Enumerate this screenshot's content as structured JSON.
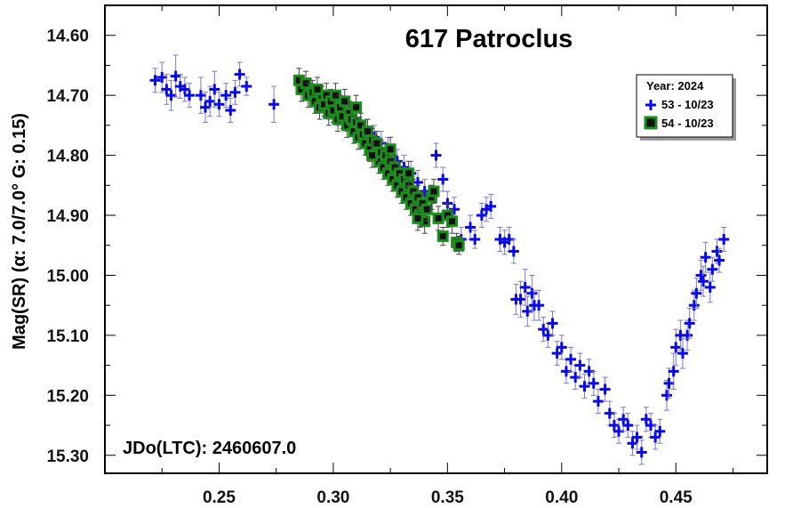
{
  "chart_data": {
    "type": "scatter",
    "title": "617 Patroclus",
    "ylabel": "Mag(SR)   (α: 7.0/7.0°  G: 0.15)",
    "xlabel": "",
    "annotation": "JDo(LTC): 2460607.0",
    "xlim": [
      0.2,
      0.49
    ],
    "ylim": [
      14.55,
      15.33
    ],
    "y_inverted": true,
    "grid": false,
    "x_ticks": [
      "0.25",
      "0.30",
      "0.35",
      "0.40",
      "0.45"
    ],
    "x_tick_values": [
      0.25,
      0.3,
      0.35,
      0.4,
      0.45
    ],
    "y_ticks": [
      "14.60",
      "14.70",
      "14.80",
      "14.90",
      "15.00",
      "15.10",
      "15.20",
      "15.30"
    ],
    "y_tick_values": [
      14.6,
      14.7,
      14.8,
      14.9,
      15.0,
      15.1,
      15.2,
      15.3
    ],
    "legend": {
      "title": "Year: 2024",
      "placement": "top-right",
      "entries": [
        "53 - 10/23",
        "54 - 10/23"
      ]
    },
    "series": [
      {
        "name": "53 - 10/23",
        "marker": "plus",
        "color": "#0a0ae6",
        "errorbar_color": "#7878d8",
        "points": [
          [
            0.222,
            14.675,
            0.02
          ],
          [
            0.225,
            14.67,
            0.025
          ],
          [
            0.227,
            14.69,
            0.025
          ],
          [
            0.229,
            14.7,
            0.025
          ],
          [
            0.231,
            14.668,
            0.035
          ],
          [
            0.233,
            14.685,
            0.02
          ],
          [
            0.235,
            14.69,
            0.02
          ],
          [
            0.237,
            14.7,
            0.02
          ],
          [
            0.242,
            14.7,
            0.03
          ],
          [
            0.244,
            14.72,
            0.025
          ],
          [
            0.246,
            14.71,
            0.025
          ],
          [
            0.248,
            14.69,
            0.03
          ],
          [
            0.25,
            14.715,
            0.02
          ],
          [
            0.253,
            14.7,
            0.02
          ],
          [
            0.255,
            14.725,
            0.02
          ],
          [
            0.257,
            14.695,
            0.02
          ],
          [
            0.259,
            14.665,
            0.02
          ],
          [
            0.262,
            14.685,
            0.015
          ],
          [
            0.274,
            14.715,
            0.03
          ],
          [
            0.286,
            14.69,
            0.02
          ],
          [
            0.29,
            14.7,
            0.02
          ],
          [
            0.294,
            14.71,
            0.02
          ],
          [
            0.298,
            14.72,
            0.02
          ],
          [
            0.302,
            14.73,
            0.02
          ],
          [
            0.306,
            14.74,
            0.02
          ],
          [
            0.309,
            14.745,
            0.02
          ],
          [
            0.312,
            14.75,
            0.02
          ],
          [
            0.315,
            14.76,
            0.02
          ],
          [
            0.318,
            14.77,
            0.02
          ],
          [
            0.321,
            14.78,
            0.02
          ],
          [
            0.324,
            14.79,
            0.02
          ],
          [
            0.328,
            14.81,
            0.02
          ],
          [
            0.331,
            14.82,
            0.02
          ],
          [
            0.334,
            14.83,
            0.02
          ],
          [
            0.337,
            14.845,
            0.02
          ],
          [
            0.34,
            14.86,
            0.02
          ],
          [
            0.343,
            14.87,
            0.02
          ],
          [
            0.345,
            14.8,
            0.02
          ],
          [
            0.348,
            14.84,
            0.02
          ],
          [
            0.35,
            14.88,
            0.02
          ],
          [
            0.353,
            14.89,
            0.02
          ],
          [
            0.356,
            14.94,
            0.02
          ],
          [
            0.36,
            14.92,
            0.02
          ],
          [
            0.362,
            14.94,
            0.015
          ],
          [
            0.365,
            14.9,
            0.02
          ],
          [
            0.367,
            14.89,
            0.02
          ],
          [
            0.369,
            14.885,
            0.02
          ],
          [
            0.373,
            14.94,
            0.02
          ],
          [
            0.375,
            14.945,
            0.02
          ],
          [
            0.377,
            14.94,
            0.02
          ],
          [
            0.379,
            14.96,
            0.02
          ],
          [
            0.38,
            15.04,
            0.025
          ],
          [
            0.382,
            15.04,
            0.03
          ],
          [
            0.384,
            15.02,
            0.03
          ],
          [
            0.385,
            15.06,
            0.025
          ],
          [
            0.387,
            15.03,
            0.03
          ],
          [
            0.388,
            15.05,
            0.025
          ],
          [
            0.39,
            15.05,
            0.025
          ],
          [
            0.392,
            15.09,
            0.02
          ],
          [
            0.394,
            15.1,
            0.02
          ],
          [
            0.396,
            15.08,
            0.02
          ],
          [
            0.398,
            15.13,
            0.02
          ],
          [
            0.4,
            15.12,
            0.02
          ],
          [
            0.402,
            15.16,
            0.02
          ],
          [
            0.404,
            15.14,
            0.02
          ],
          [
            0.406,
            15.17,
            0.02
          ],
          [
            0.408,
            15.15,
            0.02
          ],
          [
            0.41,
            15.185,
            0.02
          ],
          [
            0.412,
            15.16,
            0.02
          ],
          [
            0.414,
            15.18,
            0.02
          ],
          [
            0.416,
            15.21,
            0.02
          ],
          [
            0.419,
            15.19,
            0.02
          ],
          [
            0.421,
            15.23,
            0.02
          ],
          [
            0.423,
            15.25,
            0.02
          ],
          [
            0.425,
            15.26,
            0.02
          ],
          [
            0.427,
            15.24,
            0.02
          ],
          [
            0.429,
            15.25,
            0.02
          ],
          [
            0.431,
            15.28,
            0.02
          ],
          [
            0.433,
            15.27,
            0.02
          ],
          [
            0.435,
            15.295,
            0.02
          ],
          [
            0.437,
            15.24,
            0.02
          ],
          [
            0.439,
            15.25,
            0.02
          ],
          [
            0.441,
            15.27,
            0.02
          ],
          [
            0.443,
            15.26,
            0.02
          ],
          [
            0.446,
            15.2,
            0.025
          ],
          [
            0.447,
            15.18,
            0.025
          ],
          [
            0.449,
            15.16,
            0.03
          ],
          [
            0.45,
            15.12,
            0.03
          ],
          [
            0.452,
            15.1,
            0.025
          ],
          [
            0.453,
            15.13,
            0.025
          ],
          [
            0.455,
            15.1,
            0.025
          ],
          [
            0.456,
            15.08,
            0.025
          ],
          [
            0.458,
            15.05,
            0.025
          ],
          [
            0.459,
            15.03,
            0.025
          ],
          [
            0.461,
            15.0,
            0.025
          ],
          [
            0.462,
            15.01,
            0.025
          ],
          [
            0.463,
            14.97,
            0.025
          ],
          [
            0.465,
            15.02,
            0.025
          ],
          [
            0.466,
            14.99,
            0.02
          ],
          [
            0.468,
            14.96,
            0.02
          ],
          [
            0.469,
            14.975,
            0.02
          ],
          [
            0.471,
            14.94,
            0.02
          ]
        ]
      },
      {
        "name": "54 - 10/23",
        "marker": "square",
        "color": "#111111",
        "edge_color": "#1c8c1c",
        "errorbar_color": "#444444",
        "points": [
          [
            0.285,
            14.675,
            0.02
          ],
          [
            0.286,
            14.69,
            0.02
          ],
          [
            0.288,
            14.68,
            0.02
          ],
          [
            0.289,
            14.7,
            0.02
          ],
          [
            0.291,
            14.695,
            0.02
          ],
          [
            0.292,
            14.71,
            0.02
          ],
          [
            0.293,
            14.69,
            0.02
          ],
          [
            0.294,
            14.72,
            0.02
          ],
          [
            0.295,
            14.705,
            0.02
          ],
          [
            0.296,
            14.715,
            0.02
          ],
          [
            0.297,
            14.7,
            0.02
          ],
          [
            0.298,
            14.73,
            0.02
          ],
          [
            0.299,
            14.71,
            0.02
          ],
          [
            0.3,
            14.725,
            0.02
          ],
          [
            0.301,
            14.7,
            0.02
          ],
          [
            0.302,
            14.74,
            0.02
          ],
          [
            0.303,
            14.72,
            0.02
          ],
          [
            0.304,
            14.735,
            0.02
          ],
          [
            0.305,
            14.71,
            0.02
          ],
          [
            0.306,
            14.75,
            0.02
          ],
          [
            0.307,
            14.73,
            0.02
          ],
          [
            0.308,
            14.74,
            0.02
          ],
          [
            0.309,
            14.76,
            0.02
          ],
          [
            0.31,
            14.745,
            0.02
          ],
          [
            0.311,
            14.77,
            0.02
          ],
          [
            0.312,
            14.75,
            0.02
          ],
          [
            0.313,
            14.765,
            0.02
          ],
          [
            0.314,
            14.78,
            0.02
          ],
          [
            0.315,
            14.76,
            0.02
          ],
          [
            0.316,
            14.79,
            0.02
          ],
          [
            0.317,
            14.775,
            0.02
          ],
          [
            0.318,
            14.8,
            0.02
          ],
          [
            0.319,
            14.78,
            0.02
          ],
          [
            0.32,
            14.81,
            0.02
          ],
          [
            0.321,
            14.795,
            0.02
          ],
          [
            0.322,
            14.82,
            0.02
          ],
          [
            0.323,
            14.8,
            0.02
          ],
          [
            0.324,
            14.83,
            0.02
          ],
          [
            0.325,
            14.81,
            0.02
          ],
          [
            0.326,
            14.84,
            0.02
          ],
          [
            0.327,
            14.82,
            0.02
          ],
          [
            0.328,
            14.85,
            0.02
          ],
          [
            0.329,
            14.83,
            0.02
          ],
          [
            0.33,
            14.86,
            0.02
          ],
          [
            0.331,
            14.84,
            0.02
          ],
          [
            0.332,
            14.87,
            0.02
          ],
          [
            0.333,
            14.85,
            0.02
          ],
          [
            0.334,
            14.88,
            0.02
          ],
          [
            0.335,
            14.86,
            0.02
          ],
          [
            0.336,
            14.89,
            0.02
          ],
          [
            0.337,
            14.87,
            0.02
          ],
          [
            0.338,
            14.9,
            0.02
          ],
          [
            0.339,
            14.88,
            0.02
          ],
          [
            0.34,
            14.91,
            0.02
          ],
          [
            0.341,
            14.89,
            0.02
          ],
          [
            0.343,
            14.87,
            0.02
          ],
          [
            0.344,
            14.86,
            0.02
          ],
          [
            0.346,
            14.905,
            0.02
          ],
          [
            0.348,
            14.935,
            0.015
          ],
          [
            0.35,
            14.9,
            0.02
          ],
          [
            0.352,
            14.91,
            0.02
          ],
          [
            0.354,
            14.945,
            0.015
          ],
          [
            0.355,
            14.95,
            0.015
          ],
          [
            0.31,
            14.72,
            0.02
          ],
          [
            0.317,
            14.8,
            0.02
          ],
          [
            0.325,
            14.79,
            0.02
          ],
          [
            0.333,
            14.83,
            0.02
          ],
          [
            0.337,
            14.905,
            0.02
          ]
        ]
      }
    ]
  }
}
